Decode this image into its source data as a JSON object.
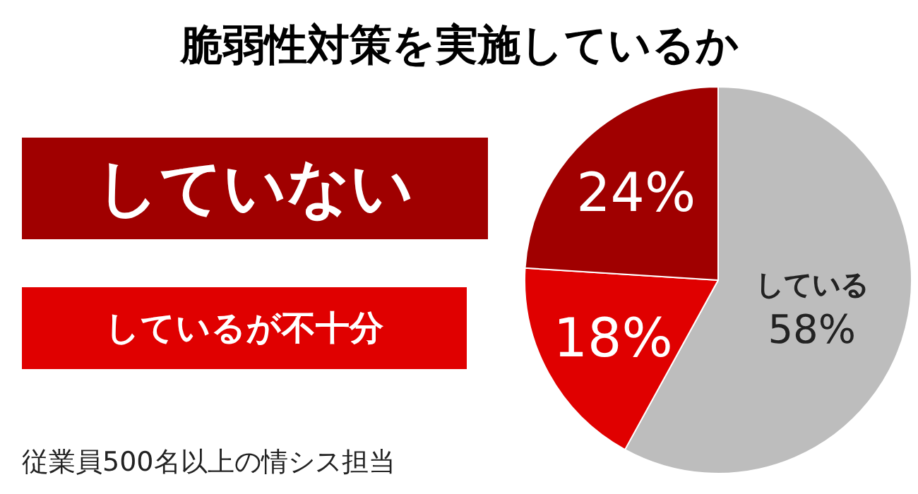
{
  "chart_data": {
    "type": "pie",
    "title": "脆弱性対策を実施しているか",
    "categories": [
      "している",
      "しているが不十分",
      "していない"
    ],
    "values": [
      58,
      18,
      24
    ],
    "colors": [
      "#bdbdbd",
      "#e00000",
      "#a00000"
    ],
    "value_labels": [
      "58%",
      "18%",
      "24%"
    ],
    "annotations": [
      "従業員500名以上の情シス担当"
    ]
  }
}
